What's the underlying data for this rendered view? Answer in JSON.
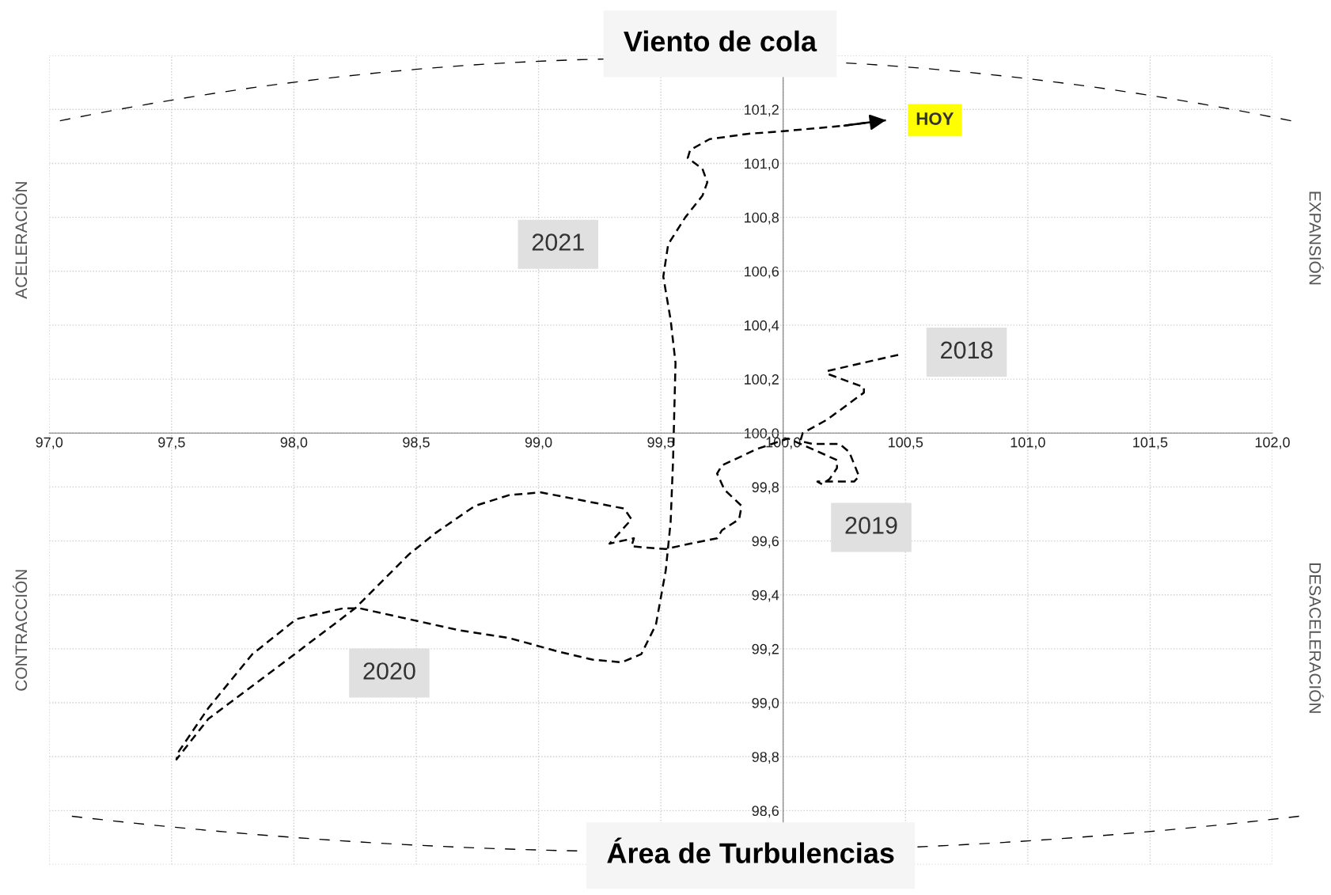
{
  "chart_data": {
    "type": "line",
    "title": "Viento de cola",
    "xlim": [
      97.0,
      102.0
    ],
    "xticks": [
      {
        "value": 97.0,
        "label": "97,0"
      },
      {
        "value": 97.5,
        "label": "97,5"
      },
      {
        "value": 98.0,
        "label": "98,0"
      },
      {
        "value": 98.5,
        "label": "98,5"
      },
      {
        "value": 99.0,
        "label": "99,0"
      },
      {
        "value": 99.5,
        "label": "99,5"
      },
      {
        "value": 100.0,
        "label": "100,0"
      },
      {
        "value": 100.5,
        "label": "100,5"
      },
      {
        "value": 101.0,
        "label": "101,0"
      },
      {
        "value": 101.5,
        "label": "101,5"
      },
      {
        "value": 102.0,
        "label": "102,0"
      }
    ],
    "ylim": [
      98.4,
      101.4
    ],
    "yticks": [
      {
        "value": 98.4,
        "label": null
      },
      {
        "value": 98.6,
        "label": "98,6"
      },
      {
        "value": 98.8,
        "label": "98,8"
      },
      {
        "value": 99.0,
        "label": "99,0"
      },
      {
        "value": 99.2,
        "label": "99,2"
      },
      {
        "value": 99.4,
        "label": "99,4"
      },
      {
        "value": 99.6,
        "label": "99,6"
      },
      {
        "value": 99.8,
        "label": "99,8"
      },
      {
        "value": 100.0,
        "label": "100,0"
      },
      {
        "value": 100.2,
        "label": "100,2"
      },
      {
        "value": 100.4,
        "label": "100,4"
      },
      {
        "value": 100.6,
        "label": "100,6"
      },
      {
        "value": 100.8,
        "label": "100,8"
      },
      {
        "value": 101.0,
        "label": "101,0"
      },
      {
        "value": 101.2,
        "label": "101,2"
      },
      {
        "value": 101.4,
        "label": null
      }
    ],
    "grid": true,
    "marker": "none",
    "line_style": "dashed",
    "series": [
      {
        "color": "#000000",
        "x": [
          100.47,
          100.18,
          100.18,
          100.33,
          100.33,
          100.27,
          100.18,
          100.08,
          100.07,
          100.07,
          100.12,
          100.23,
          100.27,
          100.31,
          100.29,
          100.21,
          100.14,
          100.16,
          100.19,
          100.22,
          100.22,
          100.12,
          100.02,
          99.89,
          99.75,
          99.73,
          99.76,
          99.83,
          99.82,
          99.75,
          99.73,
          99.62,
          99.52,
          99.38,
          99.39,
          99.34,
          99.29,
          99.31,
          99.38,
          99.35,
          99.01,
          98.88,
          98.74,
          98.58,
          98.47,
          98.25,
          97.93,
          97.65,
          97.52,
          97.53,
          97.65,
          97.83,
          98.01,
          98.2,
          98.27,
          98.47,
          98.67,
          98.88,
          99.08,
          99.22,
          99.34,
          99.42,
          99.48,
          99.52,
          99.54,
          99.55,
          99.56,
          99.54,
          99.51,
          99.53,
          99.6,
          99.67,
          99.69,
          99.67,
          99.61,
          99.62,
          99.7,
          99.86,
          100.01,
          100.25,
          100.42
        ],
        "values": [
          100.29,
          100.23,
          100.22,
          100.17,
          100.15,
          100.11,
          100.05,
          100.0,
          99.97,
          99.97,
          99.96,
          99.96,
          99.93,
          99.84,
          99.82,
          99.82,
          99.82,
          99.81,
          99.83,
          99.87,
          99.9,
          99.94,
          99.98,
          99.94,
          99.88,
          99.85,
          99.79,
          99.73,
          99.68,
          99.64,
          99.61,
          99.59,
          99.57,
          99.58,
          99.61,
          99.6,
          99.59,
          99.61,
          99.68,
          99.72,
          99.78,
          99.77,
          99.73,
          99.63,
          99.55,
          99.35,
          99.13,
          98.94,
          98.79,
          98.82,
          98.98,
          99.18,
          99.31,
          99.35,
          99.35,
          99.31,
          99.27,
          99.24,
          99.19,
          99.16,
          99.15,
          99.18,
          99.29,
          99.49,
          99.67,
          99.9,
          100.26,
          100.42,
          100.58,
          100.7,
          100.8,
          100.88,
          100.93,
          100.98,
          101.02,
          101.05,
          101.09,
          101.11,
          101.12,
          101.14,
          101.16
        ]
      }
    ],
    "annotations": [
      "2021",
      "2018",
      "2019",
      "2020",
      "HOY",
      "Área de Turbulencias",
      "ACELERACIÓN",
      "CONTRACCIÓN",
      "EXPANSIÓN",
      "DESACELERACIÓN"
    ]
  }
}
